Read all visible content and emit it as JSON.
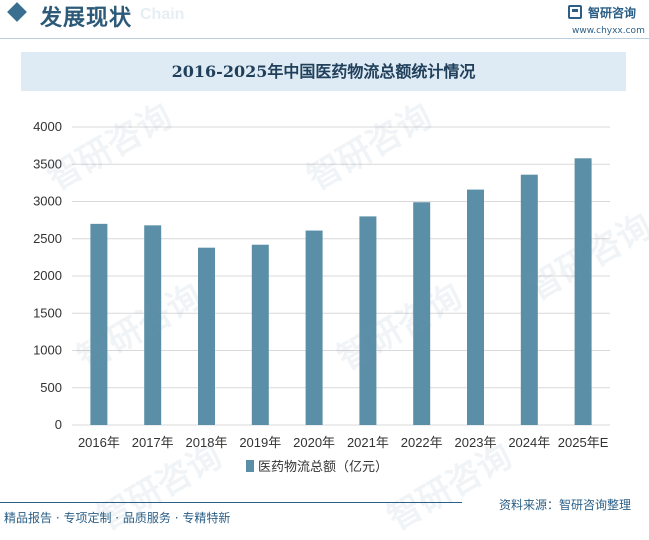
{
  "header": {
    "section_title": "发展现状",
    "section_sub": "Chain",
    "brand_name": "智研咨询",
    "brand_url": "www.chyxx.com"
  },
  "watermark_text": "智研咨询",
  "footer": {
    "left": "精品报告 · 专项定制 · 品质服务 · 专精特新",
    "right": "资料来源：智研咨询整理"
  },
  "colors": {
    "bar": "#5b8fa7",
    "accent": "#2b5f86",
    "title_bg": "#deeaf4"
  },
  "chart_data": {
    "type": "bar",
    "title": "2016-2025年中国医药物流总额统计情况",
    "categories": [
      "2016年",
      "2017年",
      "2018年",
      "2019年",
      "2020年",
      "2021年",
      "2022年",
      "2023年",
      "2024年",
      "2025年E"
    ],
    "series": [
      {
        "name": "医药物流总额（亿元）",
        "values": [
          2700,
          2680,
          2380,
          2420,
          2610,
          2800,
          2990,
          3160,
          3360,
          3580
        ]
      }
    ],
    "yticks": [
      "0",
      "500",
      "1000",
      "1500",
      "2000",
      "2500",
      "3000",
      "3500",
      "4000"
    ],
    "ylim": [
      0,
      4000
    ],
    "grid": true,
    "legend_position": "bottom-center"
  }
}
